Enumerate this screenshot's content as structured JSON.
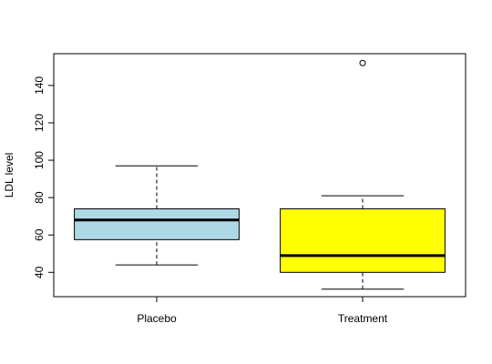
{
  "chart_data": {
    "type": "boxplot",
    "title": "",
    "xlabel": "",
    "ylabel": "LDL level",
    "ylim": [
      27,
      157
    ],
    "yticks": [
      40,
      60,
      80,
      100,
      120,
      140
    ],
    "grid": false,
    "categories": [
      "Placebo",
      "Treatment"
    ],
    "boxes": [
      {
        "name": "Placebo",
        "whisker_low": 44,
        "q1": 57.5,
        "median": 68,
        "q3": 74,
        "whisker_high": 97,
        "outliers": [],
        "fill": "#add8e6"
      },
      {
        "name": "Treatment",
        "whisker_low": 31,
        "q1": 40,
        "median": 49,
        "q3": 74,
        "whisker_high": 81,
        "outliers": [
          152
        ],
        "fill": "#ffff00"
      }
    ]
  }
}
